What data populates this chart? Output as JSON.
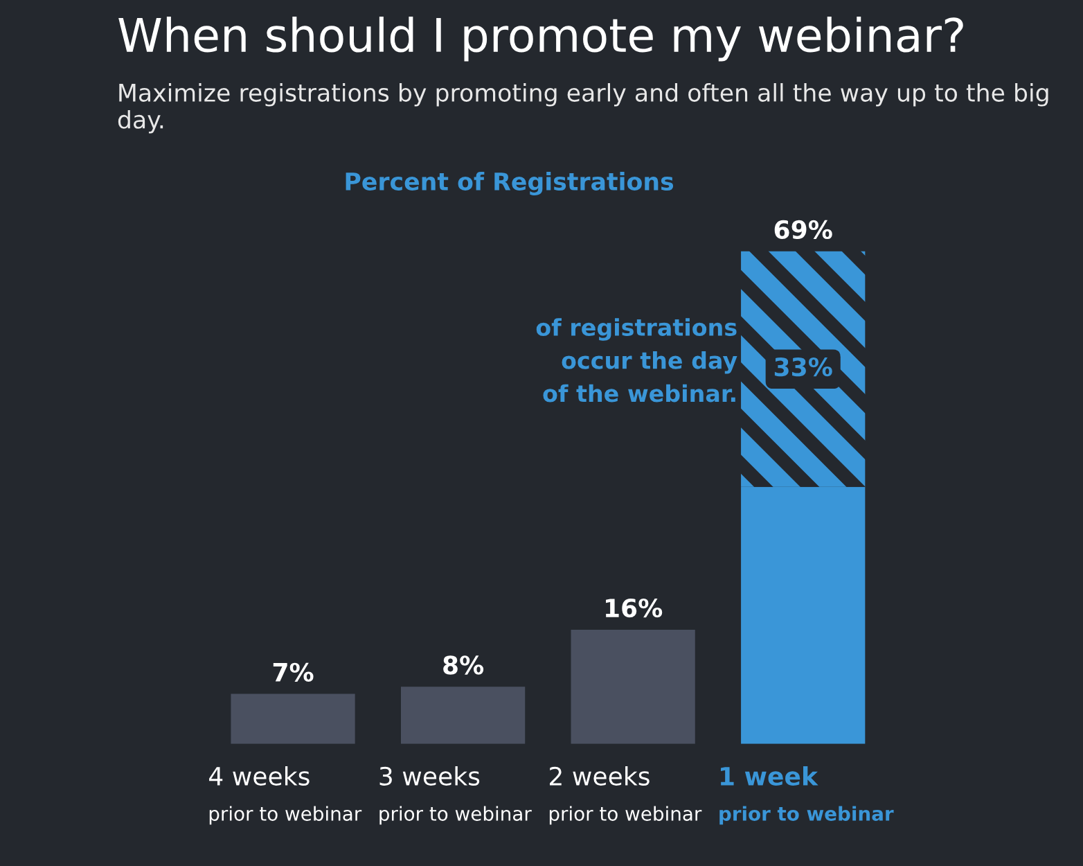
{
  "chart_data": {
    "type": "bar",
    "title": "When should I promote my webinar?",
    "subtitle": "Maximize registrations by promoting early and often all the way up to the big day.",
    "ylabel": "Percent of Registrations",
    "categories": [
      "4 weeks\nprior to webinar",
      "3 weeks\nprior to webinar",
      "2 weeks\nprior to webinar",
      "1 week\nprior to webinar"
    ],
    "stacked": true,
    "series": [
      {
        "colors": [
          "#4a5060",
          "#4a5060",
          "#4a5060",
          "#3a96d8"
        ],
        "values": [
          7,
          8,
          16,
          36
        ],
        "value_labels": [
          "7%",
          "8%",
          "16%",
          null
        ]
      },
      {
        "color": "#3a96d8",
        "values": [
          null,
          null,
          null,
          33
        ],
        "value_labels": [
          null,
          null,
          null,
          "33%"
        ]
      }
    ],
    "totals": [
      null,
      null,
      null,
      "69%"
    ],
    "annotations": [
      "of registrations\noccur the day\nof the webinar."
    ]
  }
}
